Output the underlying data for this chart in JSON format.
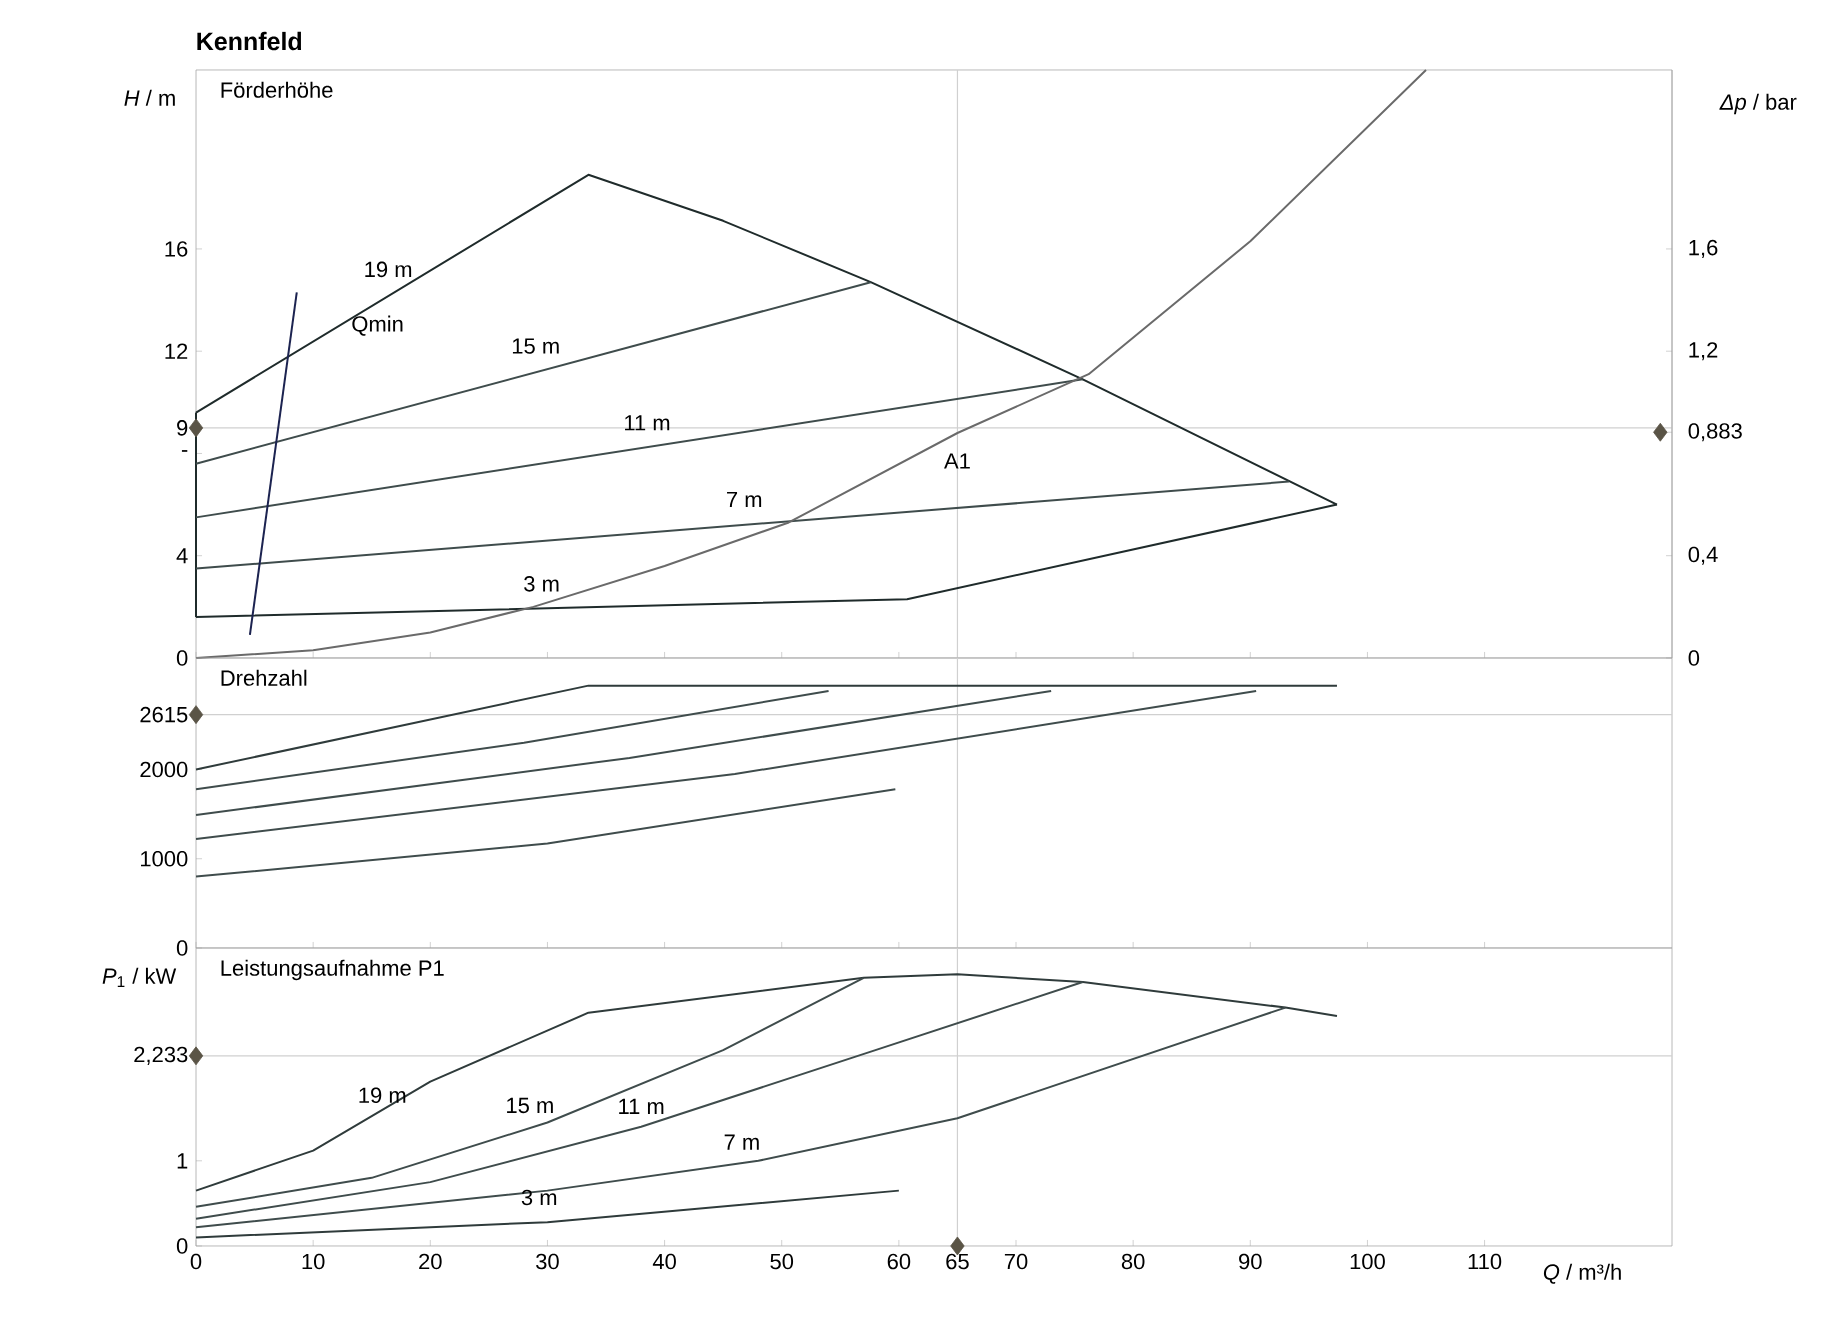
{
  "chart_data": [
    {
      "type": "line",
      "title": "Kennfeld",
      "subtitle": "Förderhöhe",
      "ylabel": "*H* / m",
      "y2label": "*Δp* / bar",
      "xlim": [
        0,
        126
      ],
      "xticks": [
        0,
        10,
        20,
        30,
        40,
        50,
        60,
        65,
        70,
        80,
        90,
        100,
        110
      ],
      "ylim": [
        0,
        23
      ],
      "yticks": [
        0,
        4,
        {
          "value": 8,
          "label": "-"
        },
        9,
        12,
        16
      ],
      "y2lim": [
        0,
        2.3
      ],
      "y2ticks": [
        0,
        {
          "value": 0.4,
          "label": "0,4"
        },
        {
          "value": 0.883,
          "label": "0,883"
        },
        {
          "value": 1.2,
          "label": "1,2"
        },
        {
          "value": 1.6,
          "label": "1,6"
        }
      ],
      "tick_labels": "y",
      "series": [
        {
          "color": "#1f2b2b",
          "x": [
            0,
            33.5,
            45,
            57.6,
            75.7,
            97.4
          ],
          "values": [
            9.6,
            18.9,
            17.1,
            14.7,
            10.9,
            6.0
          ]
        },
        {
          "color": "#1f2b2b",
          "x": [
            0,
            60.7,
            97.4
          ],
          "values": [
            1.6,
            2.3,
            6.0
          ]
        },
        {
          "color": "#1f2b2b",
          "x": [
            0,
            0
          ],
          "values": [
            1.6,
            9.6
          ]
        },
        {
          "color": "#3f4c4c",
          "x": [
            0,
            57.6
          ],
          "values": [
            7.6,
            14.7
          ]
        },
        {
          "color": "#3f4c4c",
          "x": [
            0,
            75.7
          ],
          "values": [
            5.5,
            10.9
          ]
        },
        {
          "color": "#3f4c4c",
          "x": [
            0,
            93.3
          ],
          "values": [
            3.5,
            6.9
          ]
        },
        {
          "color": "#1c2350",
          "x": [
            4.6,
            8.6
          ],
          "values": [
            0.9,
            14.3
          ]
        },
        {
          "color": "#6a6a6a",
          "x": [
            0,
            10,
            20,
            28.8,
            40,
            50.6,
            65,
            76.2,
            90,
            105
          ],
          "values": [
            0,
            0.3,
            1.0,
            2.0,
            3.6,
            5.3,
            8.8,
            11.1,
            16.3,
            23.0
          ]
        },
        {
          "type": "scatter",
          "marker": "diamond",
          "color": "#5a5446",
          "x": [
            0
          ],
          "values": [
            9
          ]
        },
        {
          "type": "scatter",
          "marker": "diamond",
          "color": "#5a5446",
          "axis": "y2",
          "x": [
            125
          ],
          "values": [
            0.883
          ]
        }
      ],
      "ref_lines": [
        {
          "axis": "x",
          "value": 65,
          "color": "#d0d0d0"
        },
        {
          "axis": "y",
          "value": 9,
          "color": "#d0d0d0"
        }
      ],
      "annotations": [
        "19 m",
        "15 m",
        "11 m",
        "7 m",
        "3 m",
        "Qmin",
        {
          "text": "A1",
          "x": 65,
          "y": 8.8
        }
      ]
    },
    {
      "type": "line",
      "subtitle": "Drehzahl",
      "xlim": [
        0,
        126
      ],
      "xticks": [
        0,
        10,
        20,
        30,
        40,
        50,
        60,
        65,
        70,
        80,
        90,
        100,
        110
      ],
      "ylim": [
        0,
        3250
      ],
      "yticks": [
        0,
        1000,
        2000,
        2615
      ],
      "tick_labels": "y",
      "series": [
        {
          "color": "#2f3b3b",
          "x": [
            0,
            33.5,
            97.4
          ],
          "values": [
            2000,
            2940,
            2940
          ]
        },
        {
          "color": "#3f4c4c",
          "x": [
            0,
            28,
            54
          ],
          "values": [
            1780,
            2300,
            2880
          ]
        },
        {
          "color": "#3f4c4c",
          "x": [
            0,
            37,
            73
          ],
          "values": [
            1490,
            2130,
            2880
          ]
        },
        {
          "color": "#3f4c4c",
          "x": [
            0,
            46,
            90.5
          ],
          "values": [
            1220,
            1950,
            2880
          ]
        },
        {
          "color": "#3f4c4c",
          "x": [
            0,
            30,
            59.7
          ],
          "values": [
            800,
            1170,
            1780
          ]
        },
        {
          "type": "scatter",
          "marker": "diamond",
          "color": "#5a5446",
          "x": [
            0
          ],
          "values": [
            2615
          ]
        }
      ],
      "ref_lines": [
        {
          "axis": "x",
          "value": 65,
          "color": "#d0d0d0"
        },
        {
          "axis": "y",
          "value": 2615,
          "color": "#d0d0d0"
        }
      ]
    },
    {
      "type": "line",
      "subtitle": "Leistungsaufnahme P1",
      "ylabel": "*P*$_{1}$ / kW",
      "xlabel": "*Q* / m³/h",
      "xlim": [
        0,
        126
      ],
      "xticks": [
        0,
        10,
        20,
        30,
        40,
        50,
        60,
        65,
        70,
        80,
        90,
        100,
        110
      ],
      "ylim": [
        0,
        3.5
      ],
      "yticks": [
        0,
        1,
        {
          "value": 2.233,
          "label": "2,233"
        }
      ],
      "series": [
        {
          "color": "#2f3b3b",
          "x": [
            0,
            10,
            20,
            33.5,
            57,
            65,
            75.7,
            93,
            97.4
          ],
          "values": [
            0.65,
            1.12,
            1.93,
            2.74,
            3.15,
            3.19,
            3.1,
            2.8,
            2.7
          ]
        },
        {
          "color": "#3f4c4c",
          "x": [
            0,
            15,
            30,
            45,
            57
          ],
          "values": [
            0.46,
            0.8,
            1.45,
            2.3,
            3.15
          ]
        },
        {
          "color": "#3f4c4c",
          "x": [
            0,
            20,
            38,
            58,
            75.7
          ],
          "values": [
            0.32,
            0.75,
            1.4,
            2.3,
            3.1
          ]
        },
        {
          "color": "#3f4c4c",
          "x": [
            0,
            30,
            48,
            65,
            93
          ],
          "values": [
            0.22,
            0.65,
            1.0,
            1.5,
            2.8
          ]
        },
        {
          "color": "#2f3b3b",
          "x": [
            0,
            30,
            60
          ],
          "values": [
            0.1,
            0.28,
            0.65
          ]
        },
        {
          "type": "scatter",
          "marker": "diamond",
          "color": "#5a5446",
          "x": [
            0
          ],
          "values": [
            2.233
          ]
        },
        {
          "type": "scatter",
          "marker": "diamond",
          "color": "#5a5446",
          "x": [
            65
          ],
          "values": [
            0
          ]
        }
      ],
      "ref_lines": [
        {
          "axis": "x",
          "value": 65,
          "color": "#d0d0d0"
        },
        {
          "axis": "y",
          "value": 2.233,
          "color": "#d0d0d0"
        }
      ],
      "annotations": [
        "19 m",
        "15 m",
        "11 m",
        "7 m",
        "3 m"
      ]
    }
  ]
}
